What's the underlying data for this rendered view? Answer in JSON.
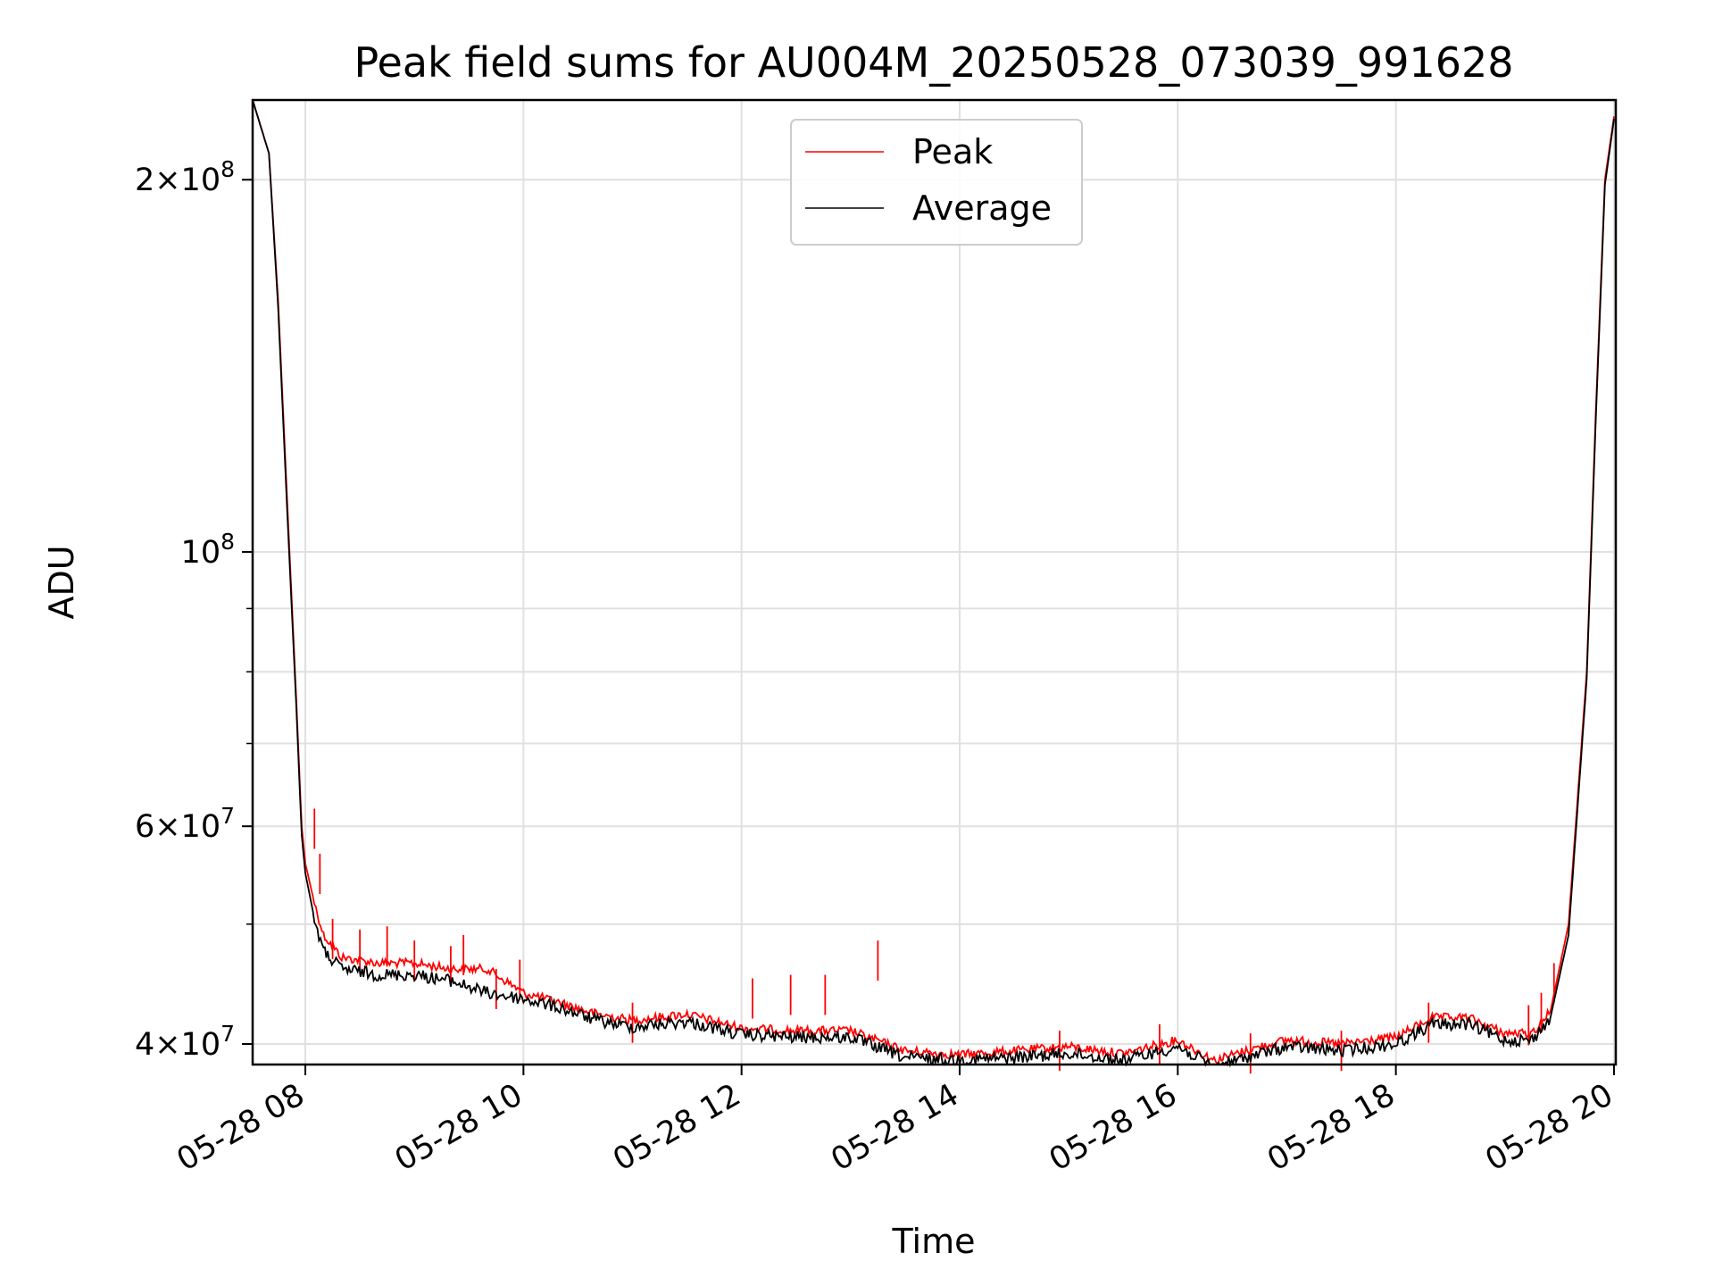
{
  "chart_data": {
    "type": "line",
    "title": "Peak field sums for AU004M_20250528_073039_991628",
    "xlabel": "Time",
    "ylabel": "ADU",
    "yscale": "log",
    "grid": true,
    "legend_position": "top-center",
    "xlim": [
      "2025-05-28 07:31",
      "2025-05-28 20:01"
    ],
    "ylim": [
      38500000,
      232000000
    ],
    "x_ticks": [
      {
        "t": "2025-05-28 08:00",
        "label": "05-28 08"
      },
      {
        "t": "2025-05-28 10:00",
        "label": "05-28 10"
      },
      {
        "t": "2025-05-28 12:00",
        "label": "05-28 12"
      },
      {
        "t": "2025-05-28 14:00",
        "label": "05-28 14"
      },
      {
        "t": "2025-05-28 16:00",
        "label": "05-28 16"
      },
      {
        "t": "2025-05-28 18:00",
        "label": "05-28 18"
      },
      {
        "t": "2025-05-28 20:00",
        "label": "05-28 20"
      }
    ],
    "y_ticks": [
      {
        "value": 40000000,
        "mant": "4",
        "exp": "7"
      },
      {
        "value": 60000000,
        "mant": "6",
        "exp": "7"
      },
      {
        "value": 100000000,
        "mant": "",
        "exp": "8"
      },
      {
        "value": 200000000,
        "mant": "2",
        "exp": "8"
      }
    ],
    "y_minor_ticks": [
      50000000,
      70000000,
      80000000,
      90000000
    ],
    "series": [
      {
        "name": "Peak",
        "color": "#ff0000",
        "points": [
          [
            "2025-05-28 07:31",
            232000000
          ],
          [
            "2025-05-28 07:40",
            210000000
          ],
          [
            "2025-05-28 07:45",
            160000000
          ],
          [
            "2025-05-28 07:50",
            110000000
          ],
          [
            "2025-05-28 07:55",
            76000000
          ],
          [
            "2025-05-28 07:58",
            60000000
          ],
          [
            "2025-05-28 08:00",
            56000000
          ],
          [
            "2025-05-28 08:05",
            52000000
          ],
          [
            "2025-05-28 08:10",
            49000000
          ],
          [
            "2025-05-28 08:20",
            47000000
          ],
          [
            "2025-05-28 08:40",
            46500000
          ],
          [
            "2025-05-28 09:00",
            46500000
          ],
          [
            "2025-05-28 09:20",
            46000000
          ],
          [
            "2025-05-28 09:40",
            46000000
          ],
          [
            "2025-05-28 10:00",
            44000000
          ],
          [
            "2025-05-28 10:20",
            43200000
          ],
          [
            "2025-05-28 10:40",
            42300000
          ],
          [
            "2025-05-28 11:00",
            41800000
          ],
          [
            "2025-05-28 11:30",
            42300000
          ],
          [
            "2025-05-28 12:00",
            41200000
          ],
          [
            "2025-05-28 12:30",
            41000000
          ],
          [
            "2025-05-28 13:00",
            41000000
          ],
          [
            "2025-05-28 13:30",
            39500000
          ],
          [
            "2025-05-28 14:00",
            39200000
          ],
          [
            "2025-05-28 14:30",
            39500000
          ],
          [
            "2025-05-28 15:00",
            39800000
          ],
          [
            "2025-05-28 15:30",
            39300000
          ],
          [
            "2025-05-28 16:00",
            40300000
          ],
          [
            "2025-05-28 16:20",
            38800000
          ],
          [
            "2025-05-28 16:40",
            39600000
          ],
          [
            "2025-05-28 17:00",
            40300000
          ],
          [
            "2025-05-28 17:30",
            40000000
          ],
          [
            "2025-05-28 18:00",
            40500000
          ],
          [
            "2025-05-28 18:20",
            42000000
          ],
          [
            "2025-05-28 18:40",
            42000000
          ],
          [
            "2025-05-28 19:00",
            40800000
          ],
          [
            "2025-05-28 19:15",
            40800000
          ],
          [
            "2025-05-28 19:25",
            42500000
          ],
          [
            "2025-05-28 19:35",
            50000000
          ],
          [
            "2025-05-28 19:45",
            80000000
          ],
          [
            "2025-05-28 19:50",
            130000000
          ],
          [
            "2025-05-28 19:55",
            200000000
          ],
          [
            "2025-05-28 20:00",
            225000000
          ]
        ]
      },
      {
        "name": "Average",
        "color": "#000000",
        "points": [
          [
            "2025-05-28 07:31",
            232000000
          ],
          [
            "2025-05-28 07:40",
            210000000
          ],
          [
            "2025-05-28 07:45",
            158000000
          ],
          [
            "2025-05-28 07:50",
            108000000
          ],
          [
            "2025-05-28 07:55",
            75000000
          ],
          [
            "2025-05-28 07:58",
            59000000
          ],
          [
            "2025-05-28 08:00",
            55000000
          ],
          [
            "2025-05-28 08:05",
            50500000
          ],
          [
            "2025-05-28 08:10",
            47500000
          ],
          [
            "2025-05-28 08:20",
            46000000
          ],
          [
            "2025-05-28 08:40",
            45500000
          ],
          [
            "2025-05-28 09:00",
            45500000
          ],
          [
            "2025-05-28 09:20",
            45000000
          ],
          [
            "2025-05-28 09:40",
            44000000
          ],
          [
            "2025-05-28 10:00",
            43500000
          ],
          [
            "2025-05-28 10:20",
            42800000
          ],
          [
            "2025-05-28 10:40",
            41800000
          ],
          [
            "2025-05-28 11:00",
            41300000
          ],
          [
            "2025-05-28 11:30",
            41700000
          ],
          [
            "2025-05-28 12:00",
            40700000
          ],
          [
            "2025-05-28 12:30",
            40500000
          ],
          [
            "2025-05-28 13:00",
            40500000
          ],
          [
            "2025-05-28 13:30",
            39000000
          ],
          [
            "2025-05-28 14:00",
            38800000
          ],
          [
            "2025-05-28 14:30",
            39000000
          ],
          [
            "2025-05-28 15:00",
            39300000
          ],
          [
            "2025-05-28 15:30",
            38800000
          ],
          [
            "2025-05-28 16:00",
            39800000
          ],
          [
            "2025-05-28 16:20",
            38300000
          ],
          [
            "2025-05-28 16:40",
            39100000
          ],
          [
            "2025-05-28 17:00",
            39800000
          ],
          [
            "2025-05-28 17:30",
            39500000
          ],
          [
            "2025-05-28 18:00",
            40000000
          ],
          [
            "2025-05-28 18:20",
            41500000
          ],
          [
            "2025-05-28 18:40",
            41500000
          ],
          [
            "2025-05-28 19:00",
            40300000
          ],
          [
            "2025-05-28 19:15",
            40300000
          ],
          [
            "2025-05-28 19:25",
            42000000
          ],
          [
            "2025-05-28 19:35",
            49000000
          ],
          [
            "2025-05-28 19:45",
            79000000
          ],
          [
            "2025-05-28 19:50",
            128000000
          ],
          [
            "2025-05-28 19:55",
            198000000
          ],
          [
            "2025-05-28 20:00",
            224000000
          ]
        ]
      }
    ],
    "peak_spikes": [
      [
        "2025-05-28 08:05",
        62000000
      ],
      [
        "2025-05-28 08:08",
        57000000
      ],
      [
        "2025-05-28 08:15",
        50500000
      ],
      [
        "2025-05-28 08:30",
        49500000
      ],
      [
        "2025-05-28 08:45",
        49800000
      ],
      [
        "2025-05-28 09:00",
        48500000
      ],
      [
        "2025-05-28 09:20",
        48000000
      ],
      [
        "2025-05-28 09:27",
        49000000
      ],
      [
        "2025-05-28 09:45",
        46000000
      ],
      [
        "2025-05-28 09:58",
        46800000
      ],
      [
        "2025-05-28 11:00",
        43200000
      ],
      [
        "2025-05-28 12:06",
        45200000
      ],
      [
        "2025-05-28 12:27",
        45500000
      ],
      [
        "2025-05-28 12:46",
        45500000
      ],
      [
        "2025-05-28 13:15",
        48500000
      ],
      [
        "2025-05-28 14:55",
        41000000
      ],
      [
        "2025-05-28 15:50",
        41500000
      ],
      [
        "2025-05-28 16:40",
        40800000
      ],
      [
        "2025-05-28 17:30",
        41000000
      ],
      [
        "2025-05-28 18:18",
        43200000
      ],
      [
        "2025-05-28 19:13",
        43000000
      ],
      [
        "2025-05-28 19:20",
        44000000
      ],
      [
        "2025-05-28 19:27",
        46500000
      ]
    ]
  }
}
